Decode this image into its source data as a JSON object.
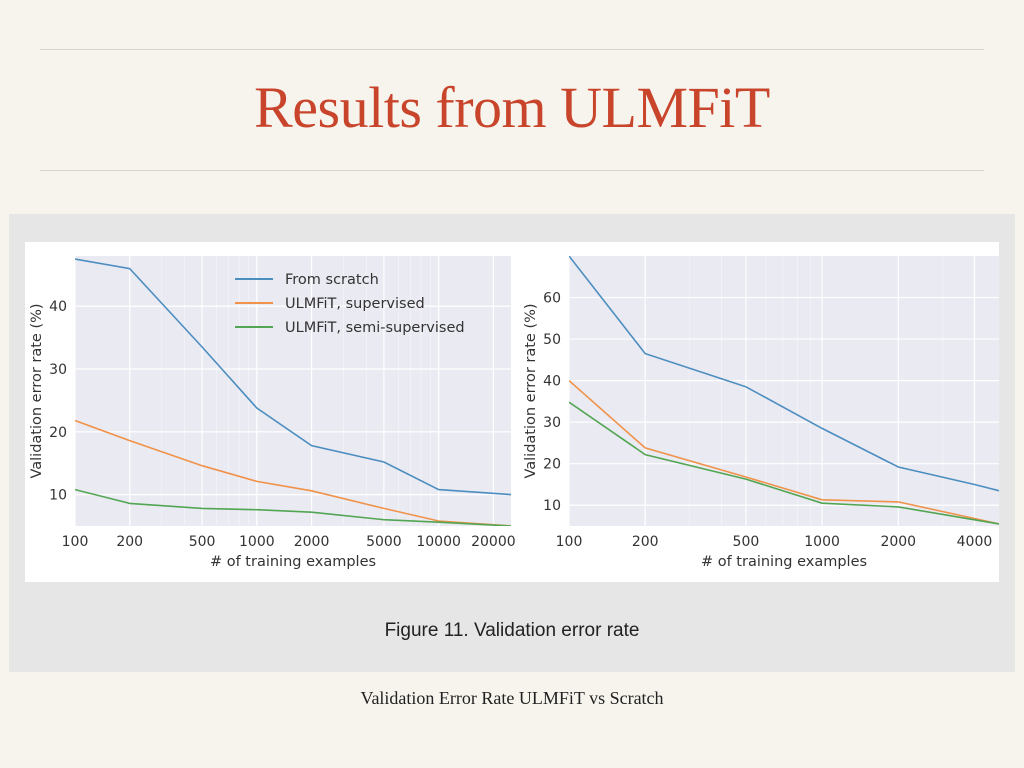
{
  "slide": {
    "title": "Results from ULMFiT",
    "caption": "Validation Error Rate ULMFiT vs Scratch"
  },
  "figure": {
    "caption": "Figure 11. Validation error rate"
  },
  "colors": {
    "from_scratch": "#4c8ec0",
    "supervised": "#f0924a",
    "semi_supervised": "#52a552",
    "plot_bg": "#eaeaf2",
    "grid": "#ffffff",
    "title": "#c8452b"
  },
  "chart_data": [
    {
      "type": "line",
      "xscale": "log",
      "xlim": [
        100,
        25000
      ],
      "ylim": [
        5,
        48
      ],
      "x_ticks": [
        100,
        200,
        500,
        1000,
        2000,
        5000,
        10000,
        20000
      ],
      "x_tick_labels": [
        "100",
        "200",
        "500",
        "1000",
        "2000",
        "5000",
        "10000",
        "20000"
      ],
      "y_ticks": [
        10,
        20,
        30,
        40
      ],
      "y_tick_labels": [
        "10",
        "20",
        "30",
        "40"
      ],
      "xlabel": "# of training examples",
      "ylabel": "Validation error rate (%)",
      "grid": true,
      "legend": "top-right",
      "series": [
        {
          "name": "From scratch",
          "color": "#4c8ec0",
          "x": [
            100,
            200,
            500,
            1000,
            2000,
            5000,
            10000,
            25000
          ],
          "y": [
            47.5,
            46,
            33.5,
            23.8,
            17.8,
            15.2,
            10.8,
            10
          ]
        },
        {
          "name": "ULMFiT, supervised",
          "color": "#f0924a",
          "x": [
            100,
            200,
            500,
            1000,
            2000,
            5000,
            10000,
            25000
          ],
          "y": [
            21.8,
            18.6,
            14.6,
            12.1,
            10.6,
            7.8,
            5.8,
            5
          ]
        },
        {
          "name": "ULMFiT, semi-supervised",
          "color": "#52a552",
          "x": [
            100,
            200,
            500,
            1000,
            2000,
            5000,
            10000,
            25000
          ],
          "y": [
            10.8,
            8.6,
            7.8,
            7.6,
            7.2,
            6.0,
            5.6,
            5
          ]
        }
      ]
    },
    {
      "type": "line",
      "xscale": "log",
      "xlim": [
        100,
        5000
      ],
      "ylim": [
        5,
        70
      ],
      "x_ticks": [
        100,
        200,
        500,
        1000,
        2000,
        4000
      ],
      "x_tick_labels": [
        "100",
        "200",
        "500",
        "1000",
        "2000",
        "4000"
      ],
      "y_ticks": [
        10,
        20,
        30,
        40,
        50,
        60
      ],
      "y_tick_labels": [
        "10",
        "20",
        "30",
        "40",
        "50",
        "60"
      ],
      "xlabel": "# of training examples",
      "ylabel": "Validation error rate (%)",
      "grid": true,
      "series": [
        {
          "color": "#4c8ec0",
          "x": [
            100,
            200,
            500,
            1000,
            2000,
            4000,
            5000
          ],
          "y": [
            70,
            46.5,
            38.5,
            28.5,
            19.2,
            15,
            13.5
          ]
        },
        {
          "color": "#f0924a",
          "x": [
            100,
            200,
            500,
            1000,
            2000,
            4000,
            5000
          ],
          "y": [
            40,
            23.8,
            16.8,
            11.3,
            10.8,
            6.8,
            5.5
          ]
        },
        {
          "color": "#52a552",
          "x": [
            100,
            200,
            500,
            1000,
            2000,
            4000,
            5000
          ],
          "y": [
            34.8,
            22.2,
            16.3,
            10.5,
            9.6,
            6.5,
            5.5
          ]
        }
      ]
    }
  ]
}
